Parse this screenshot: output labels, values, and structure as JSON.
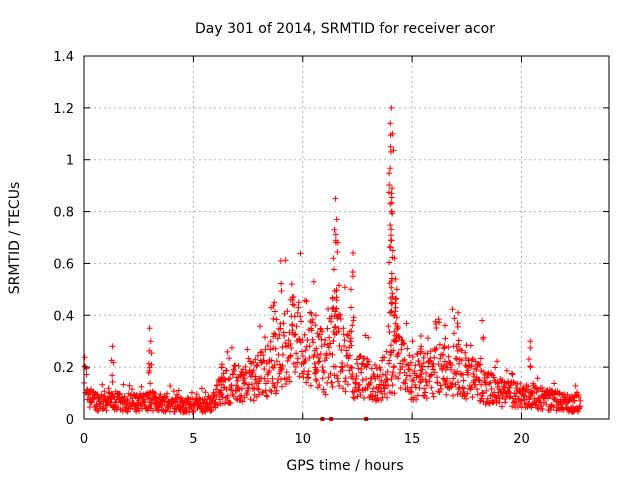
{
  "chart_data": {
    "type": "scatter",
    "title": "Day 301 of 2014, SRMTID for receiver acor",
    "xlabel": "GPS time / hours",
    "ylabel": "SRMTID / TECUs",
    "xlim": [
      0,
      24
    ],
    "ylim": [
      0,
      1.4
    ],
    "x_ticks": [
      0,
      5,
      10,
      15,
      20
    ],
    "x_tick_labels": [
      "0",
      "5",
      "10",
      "15",
      "20"
    ],
    "y_ticks": [
      0,
      0.2,
      0.4,
      0.6,
      0.8,
      1,
      1.2,
      1.4
    ],
    "y_tick_labels": [
      "0",
      "0.2",
      "0.4",
      "0.6",
      "0.8",
      "1",
      "1.2",
      "1.4"
    ],
    "grid": true,
    "marker": "+",
    "color": "#ff0000",
    "series": [
      {
        "name": "SRMTID",
        "x_range_hours": [
          0,
          22.7
        ],
        "baseline_profile": [
          [
            0.0,
            0.18
          ],
          [
            0.3,
            0.07
          ],
          [
            1.0,
            0.07
          ],
          [
            2.0,
            0.06
          ],
          [
            3.0,
            0.07
          ],
          [
            4.0,
            0.06
          ],
          [
            5.0,
            0.05
          ],
          [
            5.8,
            0.06
          ],
          [
            6.5,
            0.13
          ],
          [
            7.5,
            0.14
          ],
          [
            8.3,
            0.18
          ],
          [
            8.8,
            0.22
          ],
          [
            9.5,
            0.32
          ],
          [
            10.5,
            0.28
          ],
          [
            11.0,
            0.2
          ],
          [
            11.5,
            0.3
          ],
          [
            12.0,
            0.22
          ],
          [
            12.5,
            0.16
          ],
          [
            13.5,
            0.14
          ],
          [
            14.3,
            0.22
          ],
          [
            15.0,
            0.16
          ],
          [
            16.0,
            0.18
          ],
          [
            17.0,
            0.2
          ],
          [
            18.0,
            0.14
          ],
          [
            19.0,
            0.1
          ],
          [
            20.0,
            0.09
          ],
          [
            21.0,
            0.08
          ],
          [
            22.0,
            0.06
          ],
          [
            22.7,
            0.06
          ]
        ],
        "peaks": [
          {
            "x": 1.3,
            "y": 0.28
          },
          {
            "x": 3.0,
            "y": 0.35
          },
          {
            "x": 3.05,
            "y": 0.3
          },
          {
            "x": 6.3,
            "y": 0.2
          },
          {
            "x": 8.7,
            "y": 0.45
          },
          {
            "x": 9.0,
            "y": 0.61
          },
          {
            "x": 9.5,
            "y": 0.52
          },
          {
            "x": 10.6,
            "y": 0.4
          },
          {
            "x": 11.5,
            "y": 0.85
          },
          {
            "x": 11.55,
            "y": 0.77
          },
          {
            "x": 11.45,
            "y": 0.73
          },
          {
            "x": 11.6,
            "y": 0.68
          },
          {
            "x": 11.4,
            "y": 0.62
          },
          {
            "x": 12.3,
            "y": 0.64
          },
          {
            "x": 12.2,
            "y": 0.5
          },
          {
            "x": 14.05,
            "y": 1.2
          },
          {
            "x": 14.0,
            "y": 1.14
          },
          {
            "x": 14.1,
            "y": 1.1
          },
          {
            "x": 14.02,
            "y": 1.05
          },
          {
            "x": 14.08,
            "y": 0.89
          },
          {
            "x": 14.06,
            "y": 0.87
          },
          {
            "x": 14.0,
            "y": 0.83
          },
          {
            "x": 14.03,
            "y": 0.69
          },
          {
            "x": 14.12,
            "y": 0.65
          },
          {
            "x": 14.2,
            "y": 0.62
          },
          {
            "x": 14.25,
            "y": 0.54
          },
          {
            "x": 14.3,
            "y": 0.5
          },
          {
            "x": 17.1,
            "y": 0.41
          },
          {
            "x": 18.2,
            "y": 0.38
          },
          {
            "x": 20.4,
            "y": 0.3
          },
          {
            "x": 15.4,
            "y": 0.32
          },
          {
            "x": 16.5,
            "y": 0.36
          }
        ],
        "zero_points_x": [
          10.9,
          11.3,
          12.9
        ]
      }
    ]
  }
}
